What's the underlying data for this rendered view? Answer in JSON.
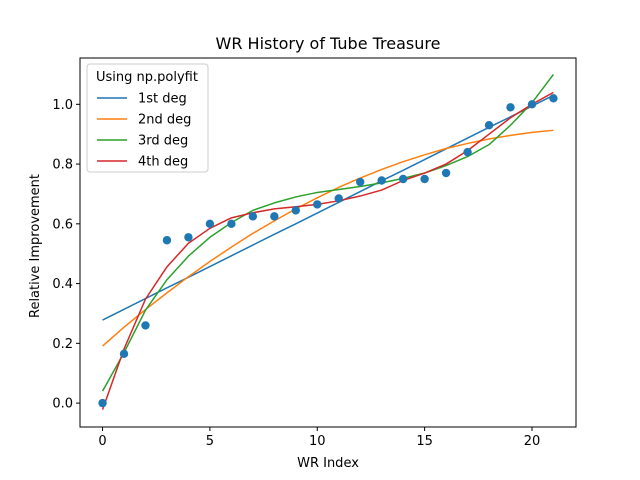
{
  "chart_data": {
    "type": "line",
    "title": "WR History of Tube Treasure",
    "xlabel": "WR Index",
    "ylabel": "Relative Improvement",
    "xlim": [
      -1.05,
      22.05
    ],
    "ylim": [
      -0.08,
      1.155
    ],
    "x_ticks": [
      0,
      5,
      10,
      15,
      20
    ],
    "y_ticks": [
      0.0,
      0.2,
      0.4,
      0.6,
      0.8,
      1.0
    ],
    "x_tick_labels": [
      "0",
      "5",
      "10",
      "15",
      "20"
    ],
    "y_tick_labels": [
      "0.0",
      "0.2",
      "0.4",
      "0.6",
      "0.8",
      "1.0"
    ],
    "grid": false,
    "legend": {
      "title": "Using np.polyfit",
      "placement": "top-left"
    },
    "points": {
      "color": "#1f77b4",
      "x": [
        0,
        1,
        2,
        3,
        4,
        5,
        6,
        7,
        8,
        9,
        10,
        11,
        12,
        13,
        14,
        15,
        16,
        17,
        18,
        19,
        20,
        21
      ],
      "y": [
        0.0,
        0.165,
        0.26,
        0.545,
        0.555,
        0.6,
        0.6,
        0.625,
        0.625,
        0.645,
        0.665,
        0.685,
        0.74,
        0.745,
        0.75,
        0.75,
        0.77,
        0.84,
        0.93,
        0.99,
        1.0,
        1.02
      ]
    },
    "x": [
      0,
      1,
      2,
      3,
      4,
      5,
      6,
      7,
      8,
      9,
      10,
      11,
      12,
      13,
      14,
      15,
      16,
      17,
      18,
      19,
      20,
      21
    ],
    "series": [
      {
        "name": "1st deg",
        "color": "#1f77b4",
        "values": [
          0.278,
          0.314,
          0.35,
          0.386,
          0.421,
          0.457,
          0.493,
          0.529,
          0.565,
          0.6,
          0.636,
          0.672,
          0.708,
          0.744,
          0.779,
          0.815,
          0.851,
          0.887,
          0.923,
          0.958,
          0.994,
          1.03
        ]
      },
      {
        "name": "2nd deg",
        "color": "#ff7f0e",
        "values": [
          0.191,
          0.254,
          0.313,
          0.369,
          0.423,
          0.474,
          0.522,
          0.568,
          0.61,
          0.65,
          0.687,
          0.722,
          0.753,
          0.782,
          0.808,
          0.831,
          0.852,
          0.869,
          0.884,
          0.896,
          0.906,
          0.913
        ]
      },
      {
        "name": "3rd deg",
        "color": "#2ca02c",
        "values": [
          0.04,
          0.169,
          0.311,
          0.413,
          0.492,
          0.555,
          0.604,
          0.645,
          0.67,
          0.69,
          0.705,
          0.715,
          0.725,
          0.737,
          0.752,
          0.77,
          0.795,
          0.825,
          0.865,
          0.93,
          1.005,
          1.1
        ]
      },
      {
        "name": "4th deg",
        "color": "#d62728",
        "values": [
          -0.022,
          0.181,
          0.348,
          0.456,
          0.535,
          0.585,
          0.62,
          0.637,
          0.65,
          0.657,
          0.665,
          0.677,
          0.693,
          0.713,
          0.745,
          0.77,
          0.8,
          0.845,
          0.9,
          0.955,
          1.0,
          1.04
        ]
      }
    ]
  }
}
